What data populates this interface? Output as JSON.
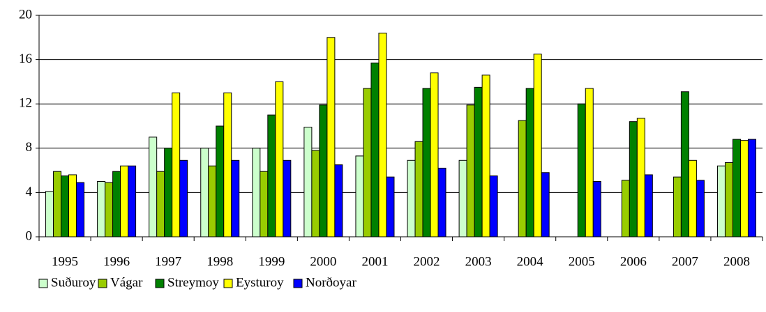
{
  "chart_data": {
    "type": "bar",
    "categories": [
      "1995",
      "1996",
      "1997",
      "1998",
      "1999",
      "2000",
      "2001",
      "2002",
      "2003",
      "2004",
      "2005",
      "2006",
      "2007",
      "2008"
    ],
    "series": [
      {
        "name": "Suðuroy",
        "color": "#ccffcc",
        "values": [
          4.1,
          5.0,
          9.0,
          8.0,
          8.0,
          9.9,
          7.3,
          6.9,
          6.9,
          null,
          null,
          null,
          null,
          6.4
        ]
      },
      {
        "name": "Vágar",
        "color": "#99cc00",
        "values": [
          5.9,
          4.9,
          5.9,
          6.4,
          5.9,
          7.8,
          13.4,
          8.6,
          11.9,
          10.5,
          null,
          5.1,
          5.4,
          6.7
        ]
      },
      {
        "name": "Streymoy",
        "color": "#008000",
        "values": [
          5.5,
          5.9,
          8.0,
          10.0,
          11.0,
          11.9,
          15.7,
          13.4,
          13.5,
          13.4,
          12.0,
          10.4,
          13.1,
          8.8
        ]
      },
      {
        "name": "Eysturoy",
        "color": "#ffff00",
        "values": [
          5.6,
          6.4,
          13.0,
          13.0,
          14.0,
          18.0,
          18.4,
          14.8,
          14.6,
          16.5,
          13.4,
          10.7,
          6.9,
          8.7
        ]
      },
      {
        "name": "Norðoyar",
        "color": "#0000ff",
        "values": [
          4.9,
          6.4,
          6.9,
          6.9,
          6.9,
          6.5,
          5.4,
          6.2,
          5.5,
          5.8,
          5.0,
          5.6,
          5.1,
          8.8
        ]
      }
    ],
    "ylim": [
      0,
      20
    ],
    "yticks": [
      0,
      4,
      8,
      12,
      16,
      20
    ],
    "grid": true,
    "legend": "bottom"
  }
}
